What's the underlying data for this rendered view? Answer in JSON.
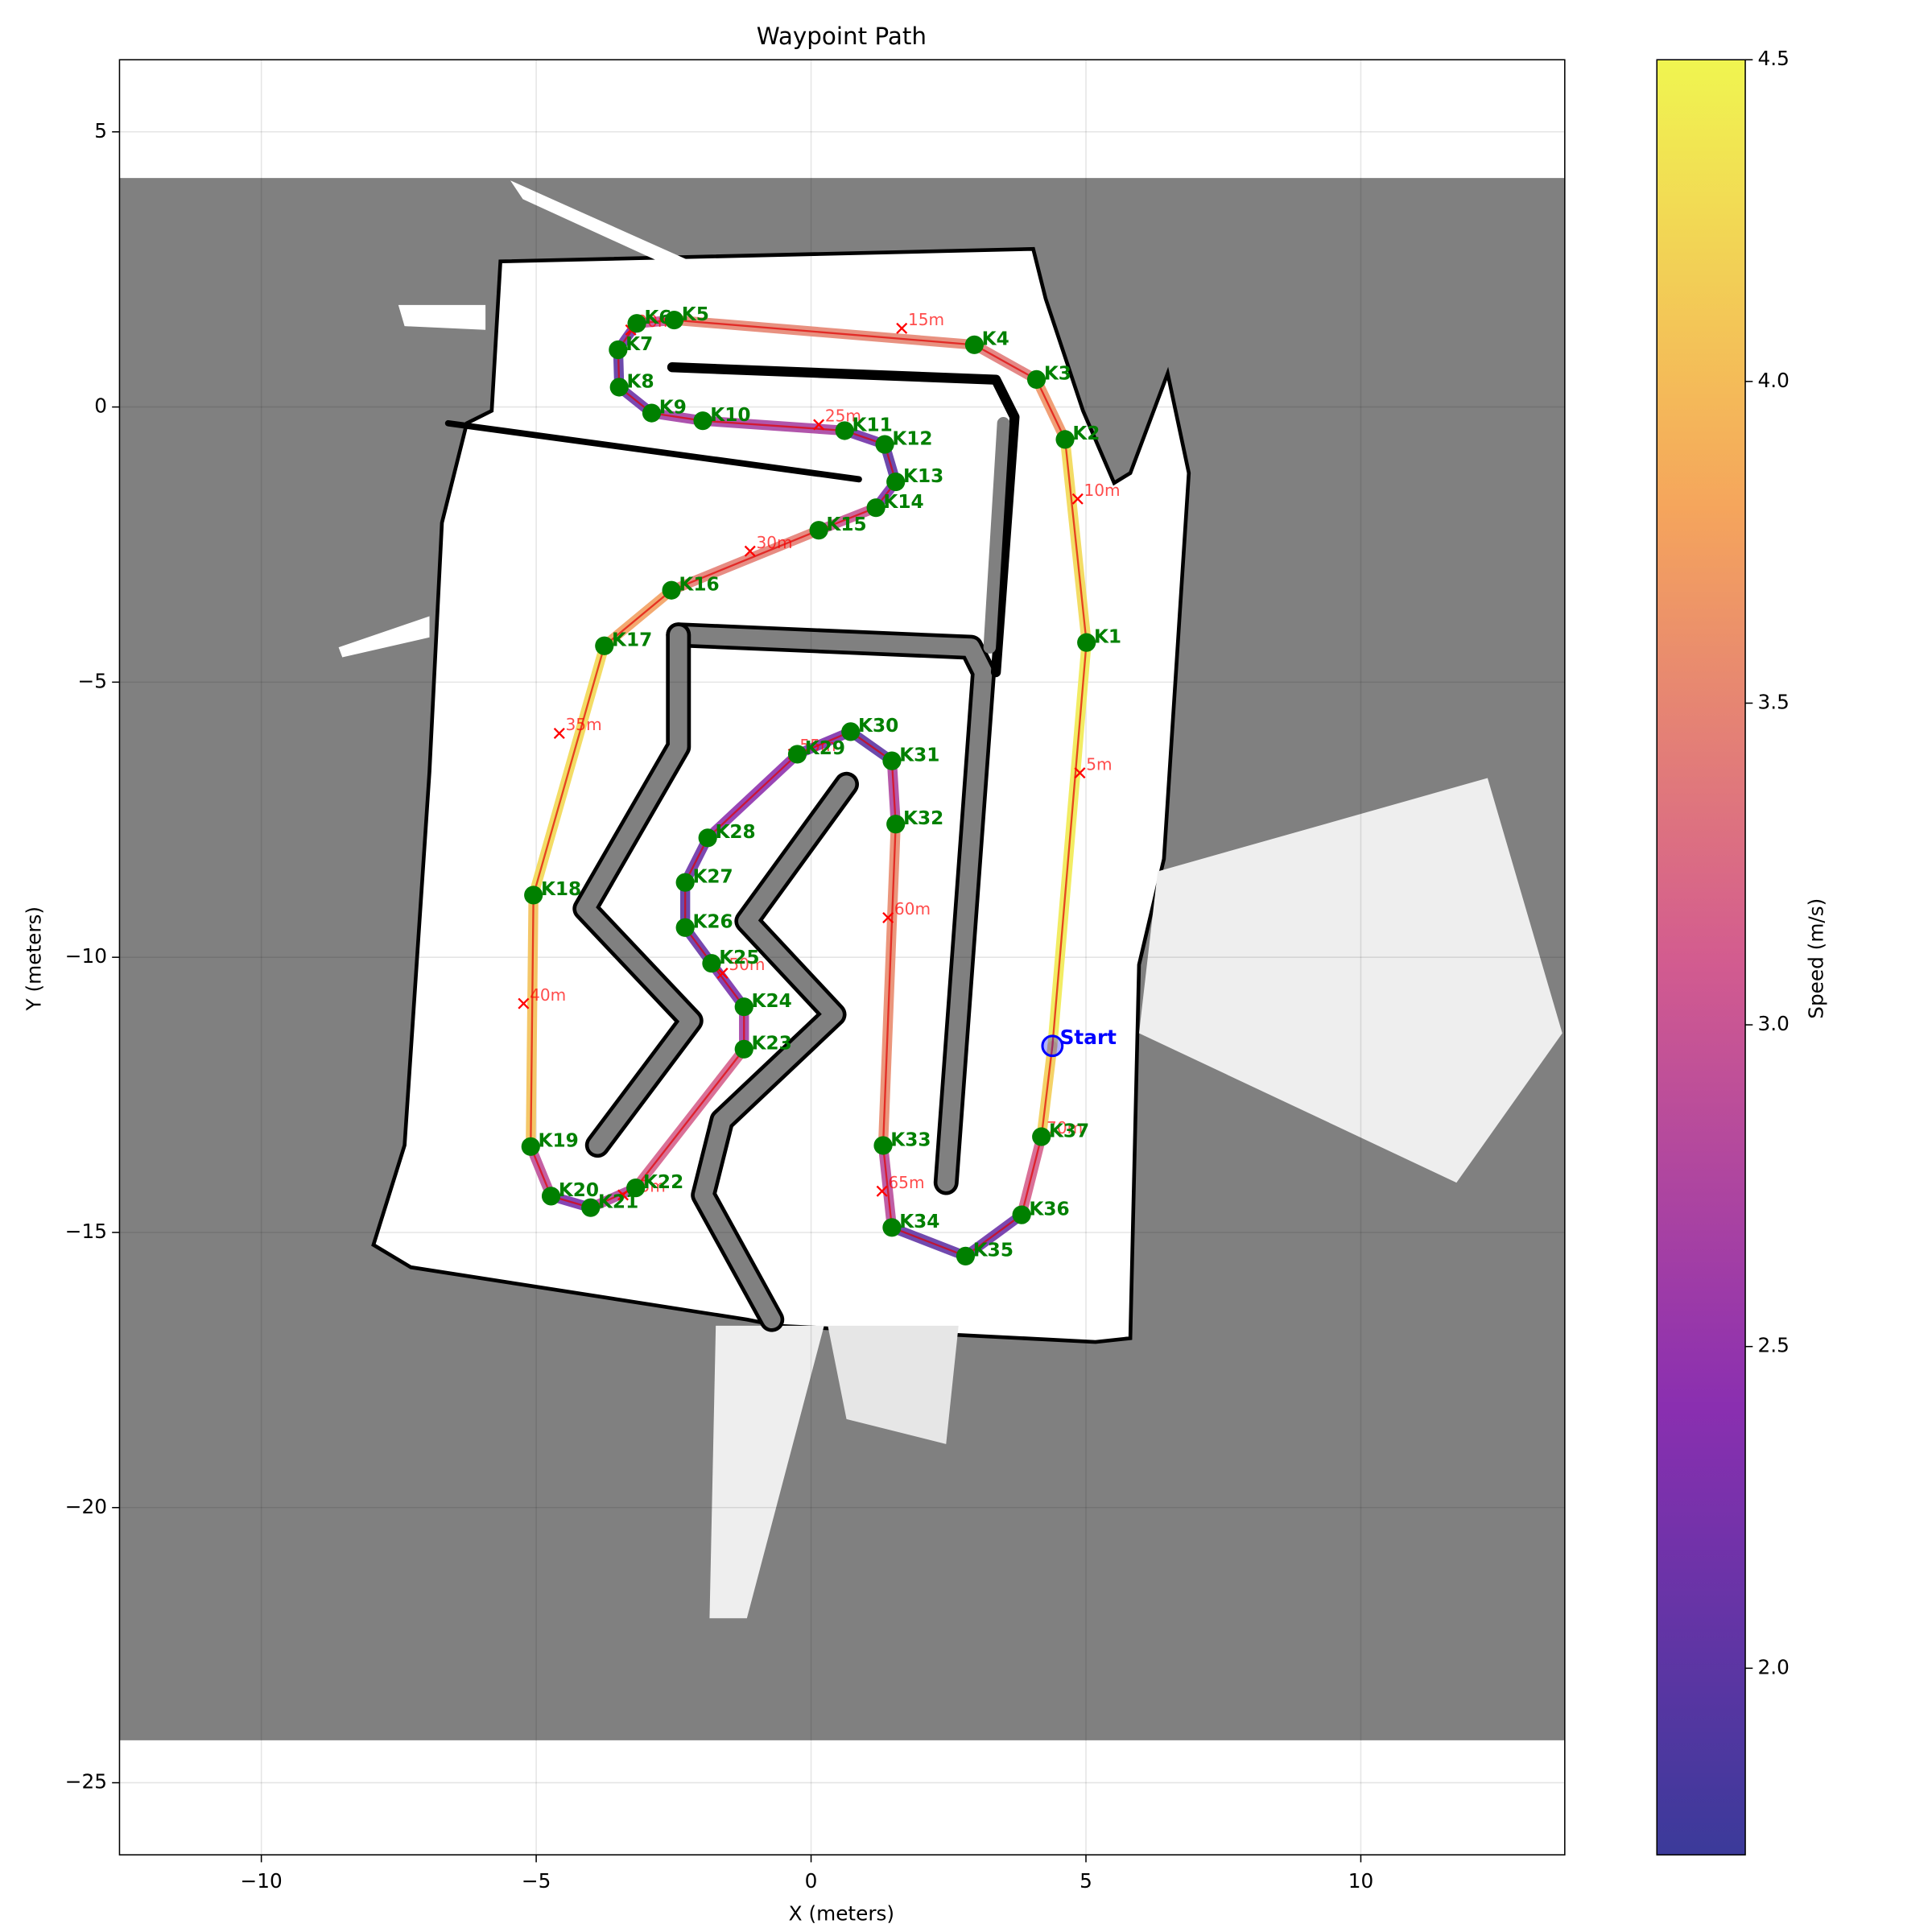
{
  "chart_data": {
    "type": "waypoint-path",
    "title": "Waypoint Path",
    "xlabel": "X (meters)",
    "ylabel": "Y (meters)",
    "xlim": [
      -12.58,
      13.71
    ],
    "ylim": [
      -26.31,
      6.31
    ],
    "xticks": [
      {
        "value": -10,
        "label": "−10"
      },
      {
        "value": -5,
        "label": "−5"
      },
      0,
      5,
      10
    ],
    "yticks": [
      5,
      0,
      {
        "value": -5,
        "label": "−5"
      },
      {
        "value": -10,
        "label": "−10"
      },
      {
        "value": -15,
        "label": "−15"
      },
      {
        "value": -20,
        "label": "−20"
      },
      {
        "value": -25,
        "label": "−25"
      }
    ],
    "grid": true,
    "colorbar": {
      "label": "Speed (m/s)",
      "clim": [
        1.71,
        4.5
      ],
      "ticks": [
        {
          "value": 2,
          "label": "2.0"
        },
        {
          "value": 2.5,
          "label": "2.5"
        },
        {
          "value": 3,
          "label": "3.0"
        },
        {
          "value": 3.5,
          "label": "3.5"
        },
        {
          "value": 4,
          "label": "4.0"
        },
        {
          "value": 4.5,
          "label": "4.5"
        }
      ]
    },
    "start": {
      "label": "Start",
      "x": 4.39,
      "y": -11.61,
      "speed": 4.3,
      "color": "#0000ff"
    },
    "waypoints": {
      "color": "#008000",
      "labels": [
        "K1",
        "K2",
        "K3",
        "K4",
        "K5",
        "K6",
        "K7",
        "K8",
        "K9",
        "K10",
        "K11",
        "K12",
        "K13",
        "K14",
        "K15",
        "K16",
        "K17",
        "K18",
        "K19",
        "K20",
        "K21",
        "K22",
        "K23",
        "K24",
        "K25",
        "K26",
        "K27",
        "K28",
        "K29",
        "K30",
        "K31",
        "K32",
        "K33",
        "K34",
        "K35",
        "K36",
        "K37"
      ],
      "x": [
        5.01,
        4.62,
        4.1,
        2.97,
        -2.49,
        -3.17,
        -3.51,
        -3.49,
        -2.9,
        -1.97,
        0.61,
        1.34,
        1.54,
        1.18,
        0.14,
        -2.54,
        -3.76,
        -5.05,
        -5.1,
        -4.73,
        -4.01,
        -3.19,
        -1.22,
        -1.22,
        -1.81,
        -2.29,
        -2.29,
        -1.88,
        -0.25,
        0.72,
        1.47,
        1.54,
        1.31,
        1.47,
        2.81,
        3.83,
        4.19
      ],
      "y": [
        -4.28,
        -0.59,
        0.5,
        1.13,
        1.58,
        1.52,
        1.04,
        0.36,
        -0.11,
        -0.25,
        -0.43,
        -0.68,
        -1.36,
        -1.83,
        -2.24,
        -3.33,
        -4.34,
        -8.87,
        -13.44,
        -14.34,
        -14.55,
        -14.19,
        -11.67,
        -10.9,
        -10.11,
        -9.46,
        -8.64,
        -7.83,
        -6.31,
        -5.9,
        -6.43,
        -7.58,
        -13.42,
        -14.91,
        -15.43,
        -14.68,
        -13.26
      ],
      "speed": [
        4.5,
        4.0,
        3.3,
        3.5,
        3.5,
        2.4,
        2.0,
        2.0,
        2.3,
        3.0,
        2.4,
        2.0,
        2.0,
        2.6,
        3.4,
        3.5,
        4.0,
        4.5,
        3.6,
        2.2,
        2.3,
        3.3,
        3.0,
        2.3,
        2.2,
        2.0,
        2.0,
        2.3,
        2.6,
        2.0,
        2.0,
        3.5,
        3.6,
        2.1,
        2.0,
        2.3,
        4.0
      ]
    },
    "distance_markers": {
      "color": "#ff0000",
      "labels": [
        "5m",
        "10m",
        "15m",
        "20m",
        "25m",
        "30m",
        "35m",
        "40m",
        "45m",
        "50m",
        "55m",
        "60m",
        "65m",
        "70m"
      ],
      "x": [
        4.89,
        4.85,
        1.65,
        -3.28,
        0.14,
        -1.11,
        -4.58,
        -5.23,
        -3.42,
        -1.61,
        -0.32,
        1.4,
        1.29,
        4.17
      ],
      "y": [
        -6.65,
        -1.67,
        1.43,
        1.4,
        -0.32,
        -2.62,
        -5.93,
        -10.84,
        -14.32,
        -10.29,
        -6.31,
        -9.28,
        -14.25,
        -13.26
      ]
    }
  }
}
